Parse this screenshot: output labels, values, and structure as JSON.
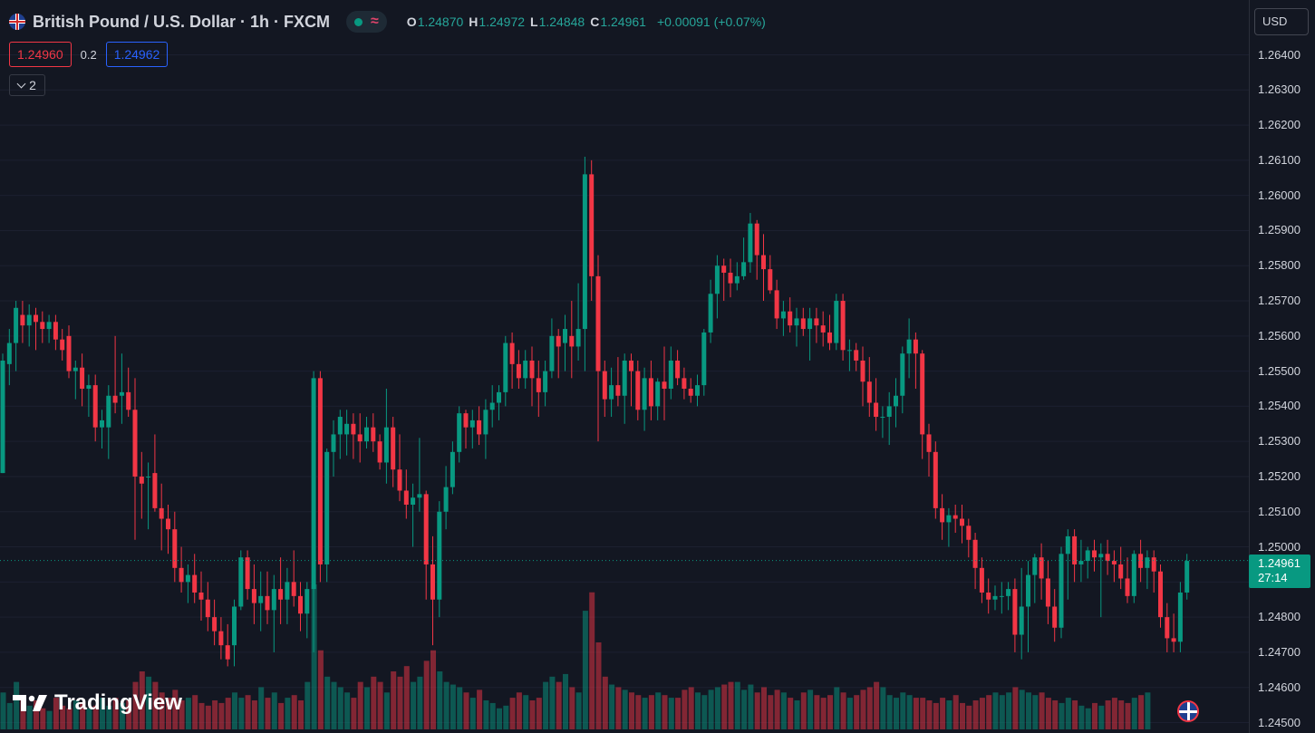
{
  "header": {
    "title": "British Pound / U.S. Dollar · 1h · FXCM",
    "ohlc": {
      "o_label": "O",
      "o_value": "1.24870",
      "h_label": "H",
      "h_value": "1.24972",
      "l_label": "L",
      "l_value": "1.24848",
      "c_label": "C",
      "c_value": "1.24961",
      "change": "+0.00091 (+0.07%)"
    },
    "status_icon": "≈"
  },
  "trade": {
    "sell_price": "1.24960",
    "spread": "0.2",
    "buy_price": "1.24962"
  },
  "indicators_toggle": {
    "count": "2"
  },
  "currency_selector": {
    "value": "USD"
  },
  "last_price": {
    "price": "1.24961",
    "countdown": "27:14"
  },
  "brand": {
    "name": "TradingView"
  },
  "colors": {
    "up": "#089981",
    "down": "#f23645",
    "background": "#131722",
    "buy": "#2962ff"
  },
  "chart_data": {
    "type": "candlestick",
    "symbol": "GBPUSD",
    "interval": "1h",
    "ylim": [
      1.245,
      1.265
    ],
    "y_ticks": [
      "1.26400",
      "1.26300",
      "1.26200",
      "1.26100",
      "1.26000",
      "1.25900",
      "1.25800",
      "1.25700",
      "1.25600",
      "1.25500",
      "1.25400",
      "1.25300",
      "1.25200",
      "1.25100",
      "1.25000",
      "1.24900",
      "1.24800",
      "1.24700",
      "1.24600",
      "1.24500"
    ],
    "last_close": 1.24961,
    "candles": [
      [
        1.2521,
        1.2555,
        1.2521,
        1.2553
      ],
      [
        1.2552,
        1.2562,
        1.2546,
        1.2558
      ],
      [
        1.2558,
        1.257,
        1.255,
        1.2568
      ],
      [
        1.2566,
        1.257,
        1.2558,
        1.2563
      ],
      [
        1.2563,
        1.2569,
        1.2557,
        1.2566
      ],
      [
        1.2566,
        1.2568,
        1.2556,
        1.2564
      ],
      [
        1.2564,
        1.2567,
        1.2558,
        1.2562
      ],
      [
        1.2562,
        1.2566,
        1.2558,
        1.2564
      ],
      [
        1.2564,
        1.2566,
        1.2556,
        1.2559
      ],
      [
        1.2559,
        1.2562,
        1.2553,
        1.2556
      ],
      [
        1.256,
        1.2563,
        1.2548,
        1.255
      ],
      [
        1.255,
        1.2553,
        1.2542,
        1.2551
      ],
      [
        1.2551,
        1.2555,
        1.254,
        1.2545
      ],
      [
        1.2545,
        1.2549,
        1.2537,
        1.2546
      ],
      [
        1.2546,
        1.2549,
        1.253,
        1.2534
      ],
      [
        1.2534,
        1.2539,
        1.2528,
        1.2536
      ],
      [
        1.2534,
        1.2546,
        1.2525,
        1.2543
      ],
      [
        1.2543,
        1.256,
        1.2538,
        1.2541
      ],
      [
        1.2543,
        1.2555,
        1.2535,
        1.2544
      ],
      [
        1.2544,
        1.2551,
        1.2537,
        1.2539
      ],
      [
        1.2539,
        1.2548,
        1.2502,
        1.252
      ],
      [
        1.252,
        1.2527,
        1.2508,
        1.2518
      ],
      [
        1.252,
        1.2524,
        1.2505,
        1.252
      ],
      [
        1.2521,
        1.2532,
        1.251,
        1.2511
      ],
      [
        1.2511,
        1.2518,
        1.2499,
        1.2508
      ],
      [
        1.2508,
        1.2512,
        1.2498,
        1.2505
      ],
      [
        1.2505,
        1.251,
        1.249,
        1.2494
      ],
      [
        1.2494,
        1.25,
        1.2487,
        1.249
      ],
      [
        1.249,
        1.2495,
        1.2484,
        1.2492
      ],
      [
        1.2492,
        1.2498,
        1.2484,
        1.2487
      ],
      [
        1.2487,
        1.2493,
        1.2479,
        1.2485
      ],
      [
        1.2485,
        1.249,
        1.2476,
        1.248
      ],
      [
        1.248,
        1.2485,
        1.2472,
        1.2476
      ],
      [
        1.2476,
        1.248,
        1.2468,
        1.2472
      ],
      [
        1.2472,
        1.2478,
        1.2466,
        1.2468
      ],
      [
        1.2472,
        1.2485,
        1.2466,
        1.2483
      ],
      [
        1.2483,
        1.2499,
        1.2482,
        1.2497
      ],
      [
        1.2497,
        1.2499,
        1.2485,
        1.2488
      ],
      [
        1.2488,
        1.2495,
        1.2478,
        1.2484
      ],
      [
        1.2484,
        1.2493,
        1.2476,
        1.2486
      ],
      [
        1.2486,
        1.2493,
        1.2478,
        1.2482
      ],
      [
        1.2482,
        1.2492,
        1.247,
        1.2488
      ],
      [
        1.2488,
        1.2497,
        1.2478,
        1.2485
      ],
      [
        1.2485,
        1.2494,
        1.2478,
        1.249
      ],
      [
        1.249,
        1.2499,
        1.2483,
        1.2486
      ],
      [
        1.2486,
        1.249,
        1.2476,
        1.2481
      ],
      [
        1.2481,
        1.249,
        1.2474,
        1.2488
      ],
      [
        1.2488,
        1.255,
        1.247,
        1.2548
      ],
      [
        1.2548,
        1.255,
        1.249,
        1.2495
      ],
      [
        1.2495,
        1.2528,
        1.249,
        1.2527
      ],
      [
        1.2527,
        1.2536,
        1.252,
        1.2532
      ],
      [
        1.2532,
        1.2539,
        1.2525,
        1.2537
      ],
      [
        1.2532,
        1.2539,
        1.2526,
        1.2535
      ],
      [
        1.2535,
        1.2538,
        1.2525,
        1.2532
      ],
      [
        1.2532,
        1.2538,
        1.2524,
        1.253
      ],
      [
        1.253,
        1.2537,
        1.2528,
        1.2534
      ],
      [
        1.2534,
        1.2538,
        1.2527,
        1.253
      ],
      [
        1.253,
        1.2532,
        1.2522,
        1.2524
      ],
      [
        1.2524,
        1.2545,
        1.2518,
        1.2534
      ],
      [
        1.2534,
        1.2537,
        1.2517,
        1.2522
      ],
      [
        1.2522,
        1.2532,
        1.2513,
        1.2516
      ],
      [
        1.2516,
        1.2522,
        1.2508,
        1.2512
      ],
      [
        1.2512,
        1.2518,
        1.25,
        1.2514
      ],
      [
        1.2514,
        1.2531,
        1.251,
        1.2515
      ],
      [
        1.2515,
        1.2516,
        1.2485,
        1.2495
      ],
      [
        1.2495,
        1.2503,
        1.2472,
        1.2485
      ],
      [
        1.2485,
        1.2513,
        1.248,
        1.251
      ],
      [
        1.251,
        1.2523,
        1.2505,
        1.2517
      ],
      [
        1.2517,
        1.253,
        1.2515,
        1.2527
      ],
      [
        1.2527,
        1.254,
        1.2524,
        1.2538
      ],
      [
        1.2538,
        1.2539,
        1.2528,
        1.2534
      ],
      [
        1.2534,
        1.2539,
        1.2528,
        1.2536
      ],
      [
        1.2536,
        1.254,
        1.2529,
        1.2532
      ],
      [
        1.2532,
        1.2542,
        1.2525,
        1.2539
      ],
      [
        1.2539,
        1.2546,
        1.2534,
        1.2541
      ],
      [
        1.2541,
        1.2546,
        1.2536,
        1.2544
      ],
      [
        1.2544,
        1.256,
        1.254,
        1.2558
      ],
      [
        1.2558,
        1.2561,
        1.2545,
        1.2552
      ],
      [
        1.2552,
        1.2556,
        1.2545,
        1.2548
      ],
      [
        1.2548,
        1.2556,
        1.2545,
        1.2553
      ],
      [
        1.2553,
        1.2557,
        1.254,
        1.2548
      ],
      [
        1.2548,
        1.2553,
        1.2537,
        1.2544
      ],
      [
        1.2544,
        1.2553,
        1.254,
        1.255
      ],
      [
        1.255,
        1.2565,
        1.2548,
        1.256
      ],
      [
        1.256,
        1.2562,
        1.2548,
        1.2557
      ],
      [
        1.2558,
        1.2566,
        1.255,
        1.2562
      ],
      [
        1.256,
        1.257,
        1.2548,
        1.2557
      ],
      [
        1.2557,
        1.2575,
        1.2553,
        1.2562
      ],
      [
        1.2562,
        1.2611,
        1.255,
        1.2606
      ],
      [
        1.2606,
        1.261,
        1.257,
        1.2577
      ],
      [
        1.2577,
        1.2583,
        1.253,
        1.255
      ],
      [
        1.255,
        1.2553,
        1.2537,
        1.2542
      ],
      [
        1.2542,
        1.2551,
        1.2537,
        1.2546
      ],
      [
        1.2546,
        1.2554,
        1.254,
        1.2543
      ],
      [
        1.2543,
        1.2555,
        1.2535,
        1.2553
      ],
      [
        1.2553,
        1.2555,
        1.254,
        1.255
      ],
      [
        1.255,
        1.2553,
        1.2536,
        1.2539
      ],
      [
        1.2539,
        1.2551,
        1.2533,
        1.2548
      ],
      [
        1.2548,
        1.2553,
        1.2536,
        1.254
      ],
      [
        1.254,
        1.2548,
        1.2536,
        1.2547
      ],
      [
        1.2547,
        1.2557,
        1.2536,
        1.2545
      ],
      [
        1.2545,
        1.2557,
        1.2542,
        1.2553
      ],
      [
        1.2553,
        1.2556,
        1.2546,
        1.2548
      ],
      [
        1.2548,
        1.2551,
        1.2542,
        1.2545
      ],
      [
        1.2545,
        1.2548,
        1.2541,
        1.2543
      ],
      [
        1.2543,
        1.2549,
        1.254,
        1.2546
      ],
      [
        1.2546,
        1.2562,
        1.2543,
        1.2561
      ],
      [
        1.2561,
        1.2576,
        1.2558,
        1.2572
      ],
      [
        1.2572,
        1.2583,
        1.2565,
        1.258
      ],
      [
        1.258,
        1.2582,
        1.257,
        1.2578
      ],
      [
        1.2578,
        1.2582,
        1.2571,
        1.2575
      ],
      [
        1.2575,
        1.2581,
        1.2573,
        1.2577
      ],
      [
        1.2577,
        1.2588,
        1.2576,
        1.2581
      ],
      [
        1.2581,
        1.2595,
        1.2578,
        1.2592
      ],
      [
        1.2592,
        1.2593,
        1.2576,
        1.2583
      ],
      [
        1.2583,
        1.2589,
        1.257,
        1.2579
      ],
      [
        1.2579,
        1.2583,
        1.2572,
        1.2573
      ],
      [
        1.2573,
        1.2576,
        1.2562,
        1.2565
      ],
      [
        1.2565,
        1.257,
        1.256,
        1.2567
      ],
      [
        1.2567,
        1.2571,
        1.2561,
        1.2563
      ],
      [
        1.2563,
        1.2568,
        1.2557,
        1.2565
      ],
      [
        1.2565,
        1.2568,
        1.256,
        1.2562
      ],
      [
        1.2562,
        1.2568,
        1.2553,
        1.2565
      ],
      [
        1.2565,
        1.2568,
        1.2558,
        1.2563
      ],
      [
        1.2563,
        1.2567,
        1.2557,
        1.2561
      ],
      [
        1.2561,
        1.2566,
        1.2556,
        1.2558
      ],
      [
        1.2558,
        1.2572,
        1.2556,
        1.257
      ],
      [
        1.257,
        1.2572,
        1.2553,
        1.2556
      ],
      [
        1.2556,
        1.2559,
        1.255,
        1.2556
      ],
      [
        1.2556,
        1.2558,
        1.255,
        1.2553
      ],
      [
        1.2553,
        1.2557,
        1.254,
        1.2547
      ],
      [
        1.2547,
        1.2554,
        1.2537,
        1.2541
      ],
      [
        1.2541,
        1.2548,
        1.2533,
        1.2537
      ],
      [
        1.2537,
        1.254,
        1.2531,
        1.2537
      ],
      [
        1.2537,
        1.2544,
        1.2529,
        1.254
      ],
      [
        1.254,
        1.2548,
        1.2534,
        1.2543
      ],
      [
        1.2543,
        1.2557,
        1.2538,
        1.2555
      ],
      [
        1.2555,
        1.2565,
        1.2548,
        1.2559
      ],
      [
        1.2559,
        1.2561,
        1.2545,
        1.2555
      ],
      [
        1.2555,
        1.2556,
        1.2525,
        1.2532
      ],
      [
        1.2532,
        1.2535,
        1.252,
        1.2527
      ],
      [
        1.2527,
        1.253,
        1.2508,
        1.2511
      ],
      [
        1.2511,
        1.2515,
        1.2502,
        1.2507
      ],
      [
        1.2507,
        1.2511,
        1.25,
        1.2509
      ],
      [
        1.2509,
        1.2512,
        1.2504,
        1.2508
      ],
      [
        1.2508,
        1.2512,
        1.2501,
        1.2506
      ],
      [
        1.2506,
        1.2508,
        1.2497,
        1.2502
      ],
      [
        1.2502,
        1.2504,
        1.2488,
        1.2494
      ],
      [
        1.2494,
        1.2497,
        1.2484,
        1.2487
      ],
      [
        1.2487,
        1.2491,
        1.2481,
        1.2485
      ],
      [
        1.2485,
        1.2489,
        1.2482,
        1.2486
      ],
      [
        1.2486,
        1.249,
        1.2481,
        1.2486
      ],
      [
        1.2486,
        1.249,
        1.2482,
        1.2488
      ],
      [
        1.2488,
        1.2491,
        1.247,
        1.2475
      ],
      [
        1.2475,
        1.2494,
        1.2468,
        1.2483
      ],
      [
        1.2483,
        1.2496,
        1.247,
        1.2492
      ],
      [
        1.2492,
        1.2498,
        1.2484,
        1.2497
      ],
      [
        1.2497,
        1.2501,
        1.2485,
        1.2491
      ],
      [
        1.2491,
        1.2496,
        1.2478,
        1.2483
      ],
      [
        1.2483,
        1.2488,
        1.2473,
        1.2477
      ],
      [
        1.2477,
        1.25,
        1.2474,
        1.2498
      ],
      [
        1.2498,
        1.2505,
        1.2485,
        1.2503
      ],
      [
        1.2503,
        1.2505,
        1.249,
        1.2495
      ],
      [
        1.2495,
        1.2502,
        1.249,
        1.2496
      ],
      [
        1.2496,
        1.25,
        1.2491,
        1.2499
      ],
      [
        1.2499,
        1.2502,
        1.2493,
        1.2497
      ],
      [
        1.2497,
        1.2501,
        1.248,
        1.2498
      ],
      [
        1.2498,
        1.2502,
        1.2492,
        1.2496
      ],
      [
        1.2496,
        1.2499,
        1.249,
        1.2495
      ],
      [
        1.2495,
        1.25,
        1.2488,
        1.2491
      ],
      [
        1.2491,
        1.2497,
        1.2484,
        1.2486
      ],
      [
        1.2486,
        1.2499,
        1.2484,
        1.2498
      ],
      [
        1.2498,
        1.2502,
        1.249,
        1.2494
      ],
      [
        1.2494,
        1.2499,
        1.2488,
        1.2497
      ],
      [
        1.2497,
        1.2499,
        1.2487,
        1.2493
      ],
      [
        1.2493,
        1.2495,
        1.2477,
        1.248
      ],
      [
        1.248,
        1.2484,
        1.247,
        1.2474
      ],
      [
        1.2474,
        1.2481,
        1.247,
        1.2473
      ],
      [
        1.2473,
        1.249,
        1.247,
        1.2487
      ],
      [
        1.2487,
        1.2498,
        1.2485,
        1.2496
      ]
    ],
    "volume": [
      14,
      10,
      18,
      12,
      9,
      11,
      8,
      7,
      12,
      9,
      8,
      11,
      10,
      8,
      9,
      12,
      9,
      12,
      10,
      11,
      18,
      22,
      20,
      18,
      14,
      12,
      15,
      11,
      12,
      13,
      10,
      9,
      11,
      10,
      12,
      14,
      12,
      13,
      11,
      16,
      12,
      14,
      10,
      12,
      13,
      11,
      18,
      55,
      30,
      20,
      18,
      16,
      14,
      12,
      18,
      16,
      20,
      18,
      14,
      22,
      20,
      24,
      18,
      20,
      26,
      30,
      22,
      18,
      17,
      16,
      14,
      12,
      15,
      11,
      10,
      8,
      9,
      12,
      14,
      13,
      11,
      12,
      18,
      20,
      18,
      21,
      16,
      14,
      45,
      52,
      33,
      20,
      17,
      16,
      15,
      14,
      13,
      12,
      13,
      14,
      13,
      12,
      12,
      15,
      16,
      14,
      13,
      15,
      16,
      17,
      18,
      18,
      15,
      17,
      14,
      16,
      13,
      15,
      14,
      12,
      11,
      14,
      15,
      13,
      12,
      13,
      16,
      14,
      12,
      13,
      15,
      16,
      18,
      16,
      13,
      12,
      14,
      13,
      12,
      12,
      11,
      10,
      12,
      11,
      13,
      10,
      9,
      11,
      12,
      13,
      14,
      13,
      14,
      16,
      15,
      14,
      13,
      14,
      12,
      11,
      10,
      12,
      11,
      9,
      8,
      10,
      9,
      11,
      12,
      11,
      10,
      12,
      13,
      14
    ]
  }
}
